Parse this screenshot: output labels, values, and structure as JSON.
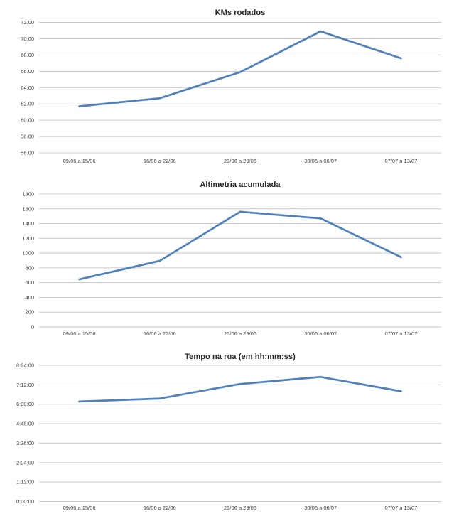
{
  "page": {
    "background_color": "#ffffff"
  },
  "charts_common": {
    "line_color": "#4f81bd",
    "gridline_color": "#c9c9c9",
    "tick_text_color": "#3f3f3f",
    "title_color": "#262626",
    "legend": "none",
    "grid": true
  },
  "chart_data": [
    {
      "type": "line",
      "title": "KMs rodados",
      "categories": [
        "09/06 a 15/06",
        "16/06 a 22/06",
        "23/06 a 29/06",
        "30/06 a 06/07",
        "07/07 a 13/07"
      ],
      "values": [
        61.7,
        62.7,
        65.9,
        70.9,
        67.6
      ],
      "xlabel": "",
      "ylabel": "",
      "ylim": [
        56,
        72
      ],
      "ytick_step": 2,
      "ytick_labels": [
        "72.00",
        "70.00",
        "68.00",
        "66.00",
        "64.00",
        "62.00",
        "60.00",
        "58.00",
        "56.00"
      ]
    },
    {
      "type": "line",
      "title": "Altimetria acumulada",
      "categories": [
        "09/06 a 15/06",
        "16/06 a 22/06",
        "23/06 a 29/06",
        "30/06 a 06/07",
        "07/07 a 13/07"
      ],
      "values": [
        645,
        895,
        1560,
        1470,
        945
      ],
      "xlabel": "",
      "ylabel": "",
      "ylim": [
        0,
        1800
      ],
      "ytick_step": 200,
      "ytick_labels": [
        "1800",
        "1600",
        "1400",
        "1200",
        "1000",
        "800",
        "600",
        "400",
        "200",
        "0"
      ]
    },
    {
      "type": "line",
      "title": "Tempo na rua (em hh:mm:ss)",
      "categories": [
        "09/06 a 15/06",
        "16/06 a 22/06",
        "23/06 a 29/06",
        "30/06 a 06/07",
        "07/07 a 13/07"
      ],
      "values": [
        "6:10:00",
        "6:21:00",
        "7:15:00",
        "7:41:00",
        "6:48:00"
      ],
      "values_minutes": [
        370,
        381,
        435,
        461,
        408
      ],
      "xlabel": "",
      "ylabel": "",
      "ylim": [
        "0:00:00",
        "8:24:00"
      ],
      "ylim_minutes": [
        0,
        504
      ],
      "ytick_step": "1:12:00",
      "ytick_labels": [
        "8:24:00",
        "7:12:00",
        "6:00:00",
        "4:48:00",
        "3:36:00",
        "2:24:00",
        "1:12:00",
        "0:00:00"
      ]
    }
  ]
}
